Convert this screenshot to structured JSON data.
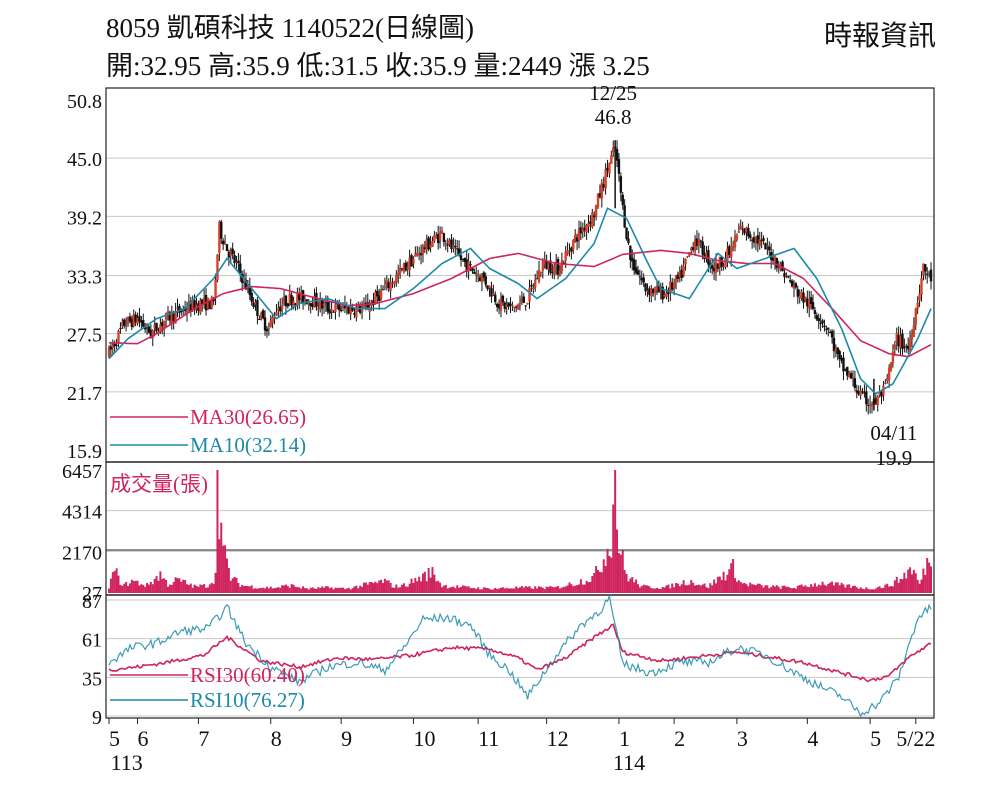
{
  "header": {
    "title": "8059  凱碩科技 1140522(日線圖)",
    "ohlc": "開:32.95 高:35.9 低:31.5 收:35.9 量:2449 漲 3.25",
    "source": "時報資訊"
  },
  "chart_data": {
    "type": "candlestick",
    "price_panel": {
      "y_ticks": [
        "50.8",
        "45.0",
        "39.2",
        "33.3",
        "27.5",
        "21.7",
        "15.9"
      ],
      "ylim": [
        15.9,
        50.8
      ],
      "annotations": [
        {
          "date": "12/25",
          "value": "46.8",
          "label": "12/25",
          "value_label": "46.8",
          "kind": "high"
        },
        {
          "date": "04/11",
          "value": "19.9",
          "label": "04/11",
          "value_label": "19.9",
          "kind": "low"
        }
      ],
      "series": [
        {
          "name": "MA30(26.65)",
          "color": "#d0245e",
          "points": [
            [
              0,
              26.6
            ],
            [
              15,
              26.5
            ],
            [
              25,
              27.5
            ],
            [
              45,
              30
            ],
            [
              60,
              31.5
            ],
            [
              75,
              32.2
            ],
            [
              90,
              32
            ],
            [
              110,
              31
            ],
            [
              125,
              30.3
            ],
            [
              140,
              30.5
            ],
            [
              160,
              31.5
            ],
            [
              180,
              33
            ],
            [
              200,
              35
            ],
            [
              215,
              35.5
            ],
            [
              235,
              34.5
            ],
            [
              255,
              34.2
            ],
            [
              270,
              35.4
            ],
            [
              290,
              35.8
            ],
            [
              305,
              35.5
            ],
            [
              320,
              34.8
            ],
            [
              335,
              34.5
            ],
            [
              350,
              34.5
            ],
            [
              365,
              33
            ],
            [
              380,
              30
            ],
            [
              395,
              26.8
            ],
            [
              410,
              25.5
            ],
            [
              420,
              25.2
            ],
            [
              432,
              26.4
            ]
          ]
        },
        {
          "name": "MA10(32.14)",
          "color": "#1c8aa8",
          "points": [
            [
              0,
              25
            ],
            [
              10,
              27
            ],
            [
              25,
              29
            ],
            [
              40,
              30
            ],
            [
              55,
              33
            ],
            [
              62,
              35
            ],
            [
              75,
              32
            ],
            [
              88,
              29
            ],
            [
              100,
              30.5
            ],
            [
              115,
              31
            ],
            [
              130,
              30
            ],
            [
              145,
              30
            ],
            [
              160,
              32
            ],
            [
              175,
              34.5
            ],
            [
              190,
              36
            ],
            [
              200,
              34
            ],
            [
              215,
              32.5
            ],
            [
              225,
              31
            ],
            [
              240,
              33
            ],
            [
              255,
              36.5
            ],
            [
              262,
              40
            ],
            [
              272,
              39
            ],
            [
              282,
              35
            ],
            [
              290,
              32
            ],
            [
              305,
              31
            ],
            [
              320,
              35.5
            ],
            [
              330,
              34
            ],
            [
              345,
              35
            ],
            [
              360,
              36
            ],
            [
              372,
              33
            ],
            [
              385,
              28
            ],
            [
              395,
              23
            ],
            [
              403,
              21.5
            ],
            [
              412,
              22.5
            ],
            [
              425,
              27
            ],
            [
              432,
              30
            ]
          ]
        }
      ]
    },
    "volume_panel": {
      "title": "成交量(張)",
      "y_ticks": [
        "6457",
        "4314",
        "2170",
        "27"
      ],
      "ylim": [
        27,
        6457
      ],
      "color": "#d0245e"
    },
    "rsi_panel": {
      "y_ticks": [
        "87",
        "61",
        "35",
        "9"
      ],
      "ylim": [
        9,
        87
      ],
      "series": [
        {
          "name": "RSI30(60.40)",
          "color": "#d0245e",
          "points": [
            [
              0,
              40
            ],
            [
              15,
              42
            ],
            [
              30,
              45
            ],
            [
              50,
              50
            ],
            [
              62,
              62
            ],
            [
              80,
              46
            ],
            [
              100,
              42
            ],
            [
              120,
              48
            ],
            [
              140,
              47
            ],
            [
              160,
              50
            ],
            [
              180,
              55
            ],
            [
              200,
              54
            ],
            [
              215,
              48
            ],
            [
              225,
              40
            ],
            [
              240,
              48
            ],
            [
              255,
              62
            ],
            [
              265,
              70
            ],
            [
              270,
              52
            ],
            [
              290,
              46
            ],
            [
              310,
              49
            ],
            [
              330,
              52
            ],
            [
              350,
              48
            ],
            [
              365,
              45
            ],
            [
              385,
              38
            ],
            [
              400,
              33
            ],
            [
              410,
              36
            ],
            [
              420,
              48
            ],
            [
              432,
              58
            ]
          ]
        },
        {
          "name": "RSI10(76.27)",
          "color": "#1c8aa8",
          "points": [
            [
              0,
              45
            ],
            [
              12,
              55
            ],
            [
              25,
              58
            ],
            [
              38,
              66
            ],
            [
              52,
              68
            ],
            [
              62,
              82
            ],
            [
              72,
              58
            ],
            [
              85,
              42
            ],
            [
              100,
              32
            ],
            [
              115,
              42
            ],
            [
              130,
              45
            ],
            [
              145,
              40
            ],
            [
              155,
              55
            ],
            [
              165,
              74
            ],
            [
              178,
              75
            ],
            [
              190,
              70
            ],
            [
              200,
              50
            ],
            [
              210,
              40
            ],
            [
              220,
              22
            ],
            [
              235,
              50
            ],
            [
              248,
              70
            ],
            [
              258,
              80
            ],
            [
              263,
              88
            ],
            [
              270,
              44
            ],
            [
              285,
              38
            ],
            [
              300,
              45
            ],
            [
              315,
              45
            ],
            [
              330,
              55
            ],
            [
              345,
              50
            ],
            [
              355,
              42
            ],
            [
              372,
              30
            ],
            [
              385,
              22
            ],
            [
              395,
              11
            ],
            [
              405,
              18
            ],
            [
              415,
              35
            ],
            [
              425,
              75
            ],
            [
              432,
              82
            ]
          ]
        }
      ]
    },
    "x_axis": {
      "labels": [
        {
          "text": "5",
          "idx": 0
        },
        {
          "text": "6",
          "idx": 15
        },
        {
          "text": "7",
          "idx": 47
        },
        {
          "text": "8",
          "idx": 85
        },
        {
          "text": "9",
          "idx": 122
        },
        {
          "text": "10",
          "idx": 160
        },
        {
          "text": "11",
          "idx": 194
        },
        {
          "text": "12",
          "idx": 230
        },
        {
          "text": "1",
          "idx": 268
        },
        {
          "text": "2",
          "idx": 297
        },
        {
          "text": "3",
          "idx": 330
        },
        {
          "text": "4",
          "idx": 367
        },
        {
          "text": "5",
          "idx": 400
        },
        {
          "text": "5/22",
          "idx": 424
        }
      ],
      "year_labels": [
        {
          "text": "113",
          "idx": 4
        },
        {
          "text": "114",
          "idx": 268
        }
      ]
    },
    "price_anchors": [
      [
        0,
        25.5
      ],
      [
        8,
        28.5
      ],
      [
        15,
        29
      ],
      [
        22,
        27.5
      ],
      [
        30,
        29
      ],
      [
        40,
        30
      ],
      [
        48,
        30.5
      ],
      [
        55,
        30.5
      ],
      [
        58,
        38
      ],
      [
        62,
        36
      ],
      [
        68,
        34
      ],
      [
        75,
        31
      ],
      [
        80,
        29
      ],
      [
        84,
        28
      ],
      [
        88,
        30
      ],
      [
        95,
        31
      ],
      [
        105,
        31
      ],
      [
        115,
        30
      ],
      [
        125,
        30
      ],
      [
        135,
        30
      ],
      [
        145,
        32
      ],
      [
        155,
        34
      ],
      [
        165,
        36
      ],
      [
        175,
        37.5
      ],
      [
        182,
        35.5
      ],
      [
        190,
        34
      ],
      [
        197,
        33
      ],
      [
        205,
        30.5
      ],
      [
        212,
        30
      ],
      [
        220,
        31
      ],
      [
        228,
        34.5
      ],
      [
        236,
        34
      ],
      [
        245,
        37
      ],
      [
        255,
        39.5
      ],
      [
        262,
        44
      ],
      [
        266,
        46
      ],
      [
        270,
        40
      ],
      [
        274,
        35
      ],
      [
        282,
        32
      ],
      [
        292,
        31.5
      ],
      [
        300,
        33
      ],
      [
        308,
        37
      ],
      [
        318,
        34
      ],
      [
        326,
        35.5
      ],
      [
        332,
        38
      ],
      [
        340,
        37
      ],
      [
        350,
        35
      ],
      [
        360,
        32
      ],
      [
        370,
        30
      ],
      [
        378,
        28
      ],
      [
        384,
        24.5
      ],
      [
        390,
        23
      ],
      [
        396,
        21
      ],
      [
        402,
        20.5
      ],
      [
        408,
        22
      ],
      [
        414,
        27
      ],
      [
        420,
        26
      ],
      [
        424,
        30
      ],
      [
        428,
        34
      ],
      [
        432,
        33
      ]
    ],
    "volume_anchors": [
      [
        0,
        0.05
      ],
      [
        3,
        0.2
      ],
      [
        5,
        0.12
      ],
      [
        8,
        0.06
      ],
      [
        12,
        0.1
      ],
      [
        20,
        0.06
      ],
      [
        27,
        0.16
      ],
      [
        31,
        0.07
      ],
      [
        36,
        0.11
      ],
      [
        45,
        0.05
      ],
      [
        52,
        0.06
      ],
      [
        56,
        0.14
      ],
      [
        57,
        0.99
      ],
      [
        60,
        0.38
      ],
      [
        64,
        0.13
      ],
      [
        70,
        0.06
      ],
      [
        80,
        0.04
      ],
      [
        88,
        0.04
      ],
      [
        95,
        0.06
      ],
      [
        105,
        0.03
      ],
      [
        115,
        0.04
      ],
      [
        125,
        0.03
      ],
      [
        145,
        0.1
      ],
      [
        150,
        0.05
      ],
      [
        155,
        0.06
      ],
      [
        170,
        0.18
      ],
      [
        175,
        0.06
      ],
      [
        180,
        0.05
      ],
      [
        200,
        0.03
      ],
      [
        215,
        0.04
      ],
      [
        235,
        0.04
      ],
      [
        245,
        0.08
      ],
      [
        255,
        0.14
      ],
      [
        260,
        0.3
      ],
      [
        264,
        0.5
      ],
      [
        266,
        1.0
      ],
      [
        268,
        0.42
      ],
      [
        272,
        0.15
      ],
      [
        280,
        0.05
      ],
      [
        292,
        0.04
      ],
      [
        305,
        0.1
      ],
      [
        315,
        0.05
      ],
      [
        328,
        0.22
      ],
      [
        332,
        0.08
      ],
      [
        345,
        0.05
      ],
      [
        360,
        0.04
      ],
      [
        375,
        0.08
      ],
      [
        390,
        0.05
      ],
      [
        400,
        0.03
      ],
      [
        410,
        0.06
      ],
      [
        416,
        0.12
      ],
      [
        422,
        0.22
      ],
      [
        426,
        0.07
      ],
      [
        432,
        0.36
      ]
    ]
  }
}
